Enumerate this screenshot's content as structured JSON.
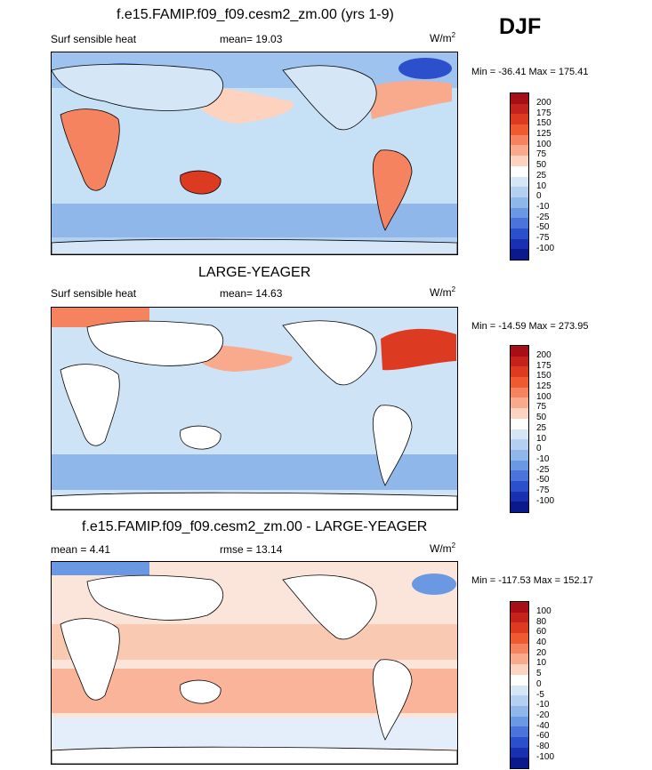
{
  "season": "DJF",
  "panels": [
    {
      "title": "f.e15.FAMIP.f09_f09.cesm2_zm.00 (yrs 1-9)",
      "left_label": "Surf sensible heat",
      "mean_label": "mean=  19.03",
      "units": "W/m",
      "units_sup": "2",
      "minmax": "Min = -36.41 Max = 175.41",
      "ocean_fill": "#c6e0f5",
      "land_fill": "#fdd9c4",
      "colorbar": {
        "labels": [
          "200",
          "175",
          "150",
          "125",
          "100",
          "75",
          "50",
          "25",
          "10",
          "0",
          "-10",
          "-25",
          "-50",
          "-75",
          "-100"
        ],
        "colors": [
          "#a50f15",
          "#c4231d",
          "#dd3a22",
          "#ef5a31",
          "#f58360",
          "#f9a98c",
          "#fdd2bf",
          "#ffffff",
          "#d5e6f7",
          "#b3d0f0",
          "#8fb7ea",
          "#6b98e3",
          "#4b73d9",
          "#2c4fcb",
          "#1930b0",
          "#0a1a8a"
        ]
      }
    },
    {
      "title": "LARGE-YEAGER",
      "left_label": "Surf sensible heat",
      "mean_label": "mean=  14.63",
      "units": "W/m",
      "units_sup": "2",
      "minmax": "Min = -14.59 Max = 273.95",
      "ocean_fill": "#cfe3f6",
      "land_fill": "#ffffff",
      "colorbar": {
        "labels": [
          "200",
          "175",
          "150",
          "125",
          "100",
          "75",
          "50",
          "25",
          "10",
          "0",
          "-10",
          "-25",
          "-50",
          "-75",
          "-100"
        ],
        "colors": [
          "#a50f15",
          "#c4231d",
          "#dd3a22",
          "#ef5a31",
          "#f58360",
          "#f9a98c",
          "#fdd2bf",
          "#ffffff",
          "#d5e6f7",
          "#b3d0f0",
          "#8fb7ea",
          "#6b98e3",
          "#4b73d9",
          "#2c4fcb",
          "#1930b0",
          "#0a1a8a"
        ]
      }
    },
    {
      "title": "f.e15.FAMIP.f09_f09.cesm2_zm.00 - LARGE-YEAGER",
      "left_label": "mean =   4.41",
      "mean_label": "rmse =  13.14",
      "units": "W/m",
      "units_sup": "2",
      "minmax": "Min = -117.53 Max = 152.17",
      "ocean_fill": "#f7e0d6",
      "land_fill": "#ffffff",
      "colorbar": {
        "labels": [
          "100",
          "80",
          "60",
          "40",
          "20",
          "10",
          "5",
          "0",
          "-5",
          "-10",
          "-20",
          "-40",
          "-60",
          "-80",
          "-100"
        ],
        "colors": [
          "#a50f15",
          "#c4231d",
          "#dd3a22",
          "#ef5a31",
          "#f58360",
          "#f9a98c",
          "#fdd2bf",
          "#ffffff",
          "#d5e6f7",
          "#b3d0f0",
          "#8fb7ea",
          "#6b98e3",
          "#4b73d9",
          "#2c4fcb",
          "#1930b0",
          "#0a1a8a"
        ]
      }
    }
  ]
}
